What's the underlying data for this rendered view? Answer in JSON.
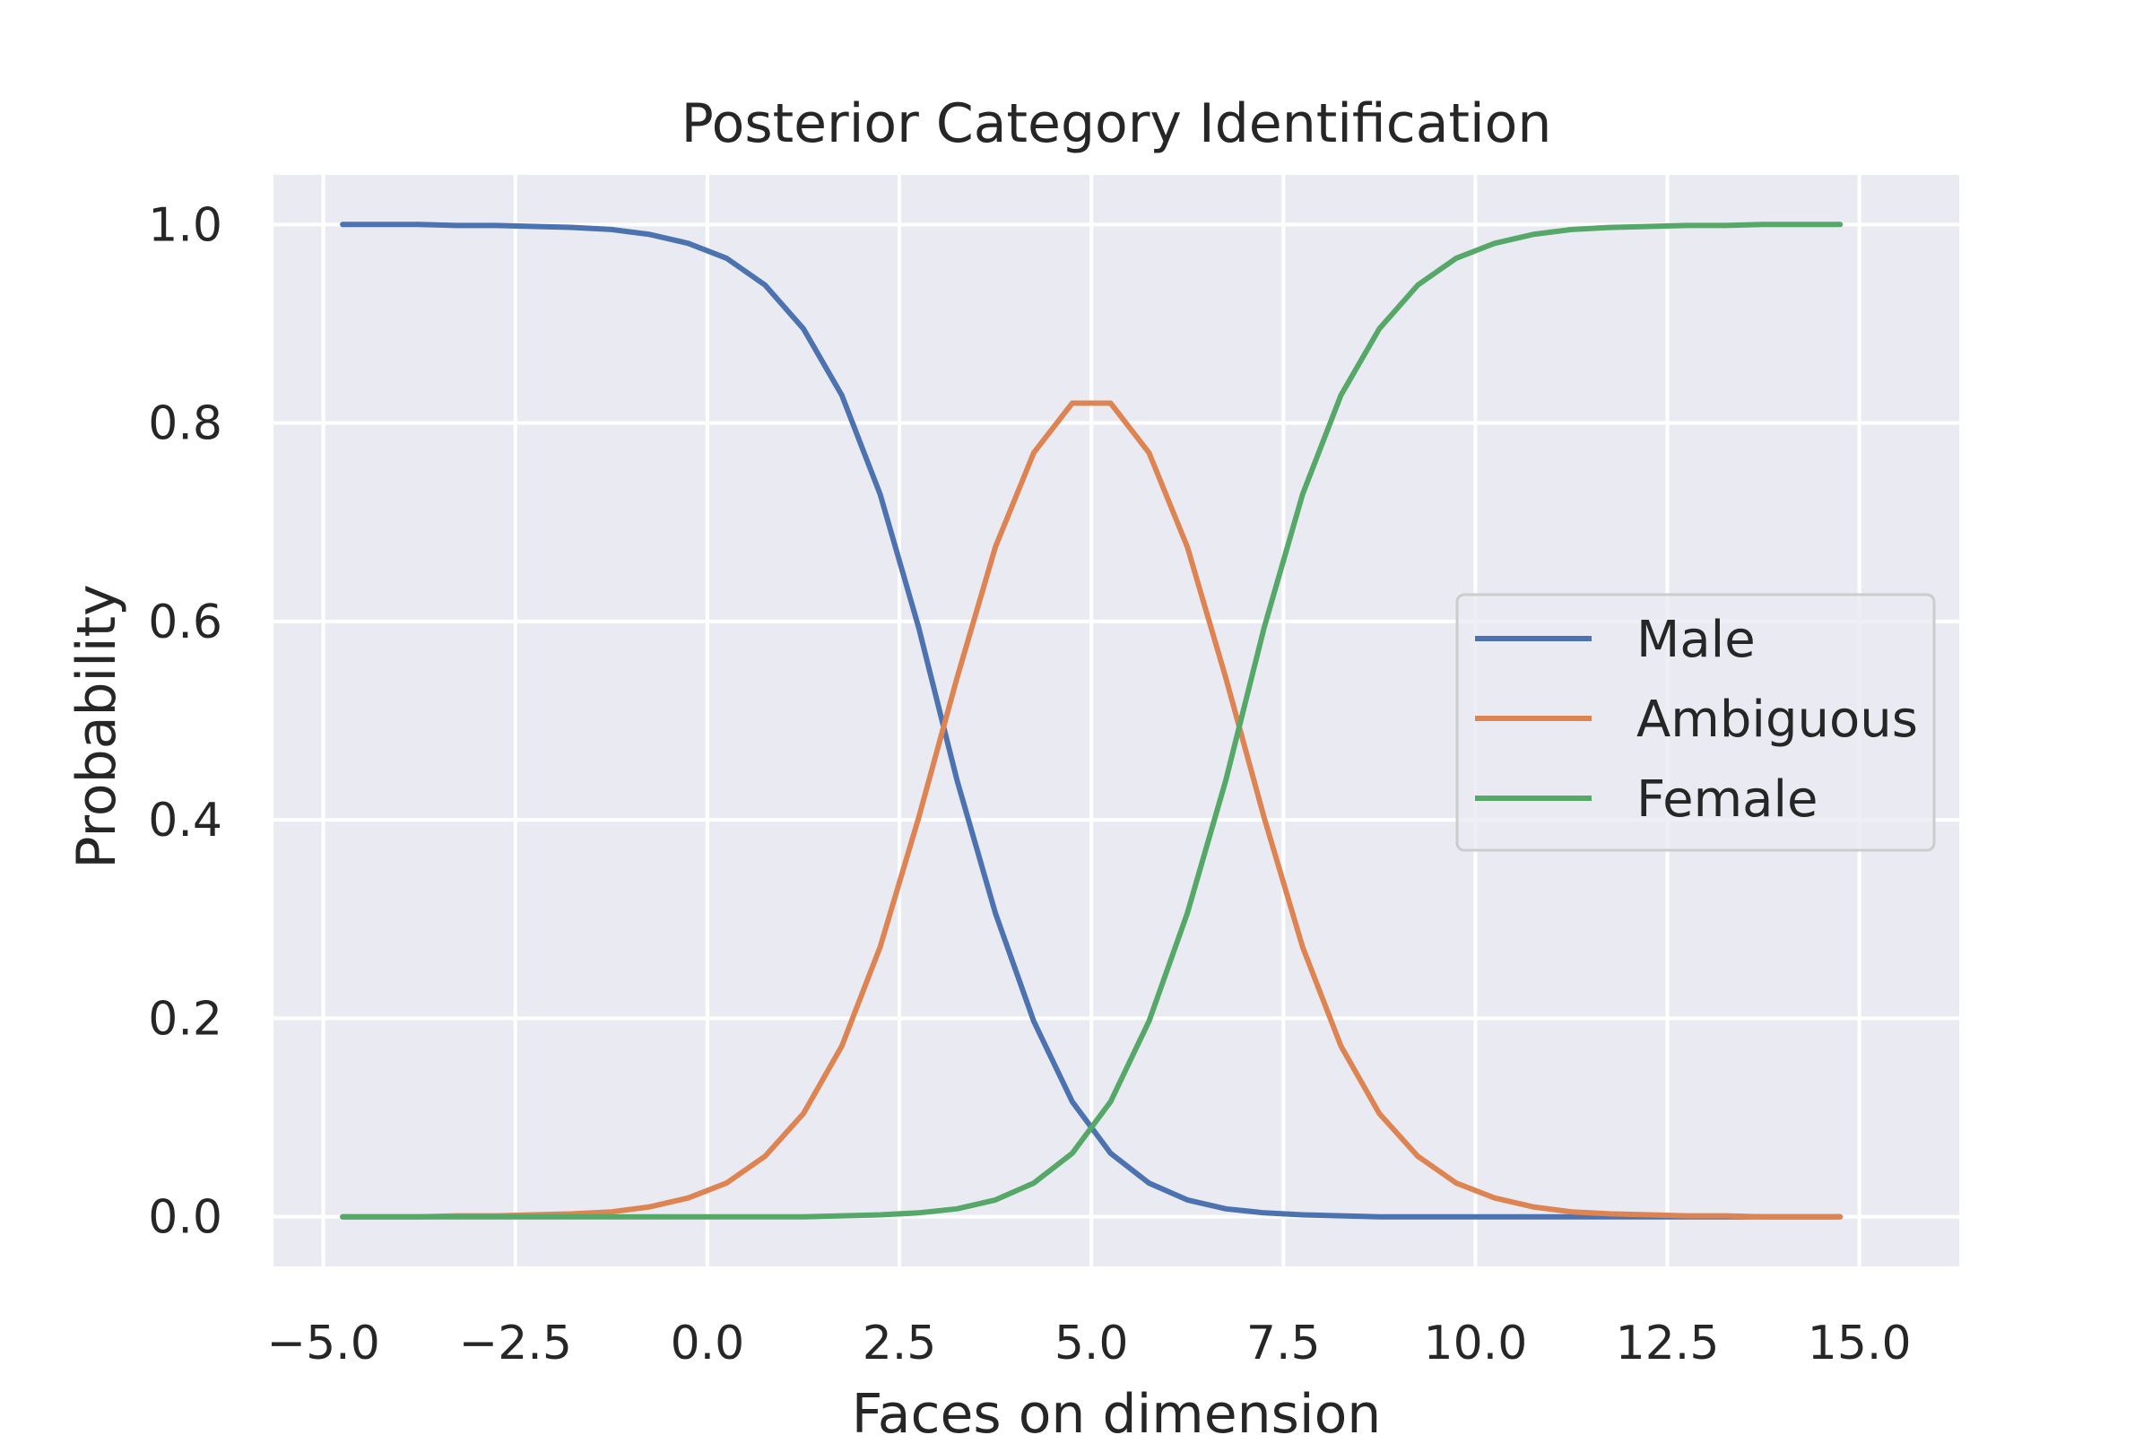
{
  "chart_data": {
    "type": "line",
    "title": "Posterior Category Identification",
    "xlabel": "Faces on dimension",
    "ylabel": "Probability",
    "xlim": [
      -5.65,
      16.3
    ],
    "ylim": [
      -0.05,
      1.05
    ],
    "xticks": [
      -5.0,
      -2.5,
      0.0,
      2.5,
      5.0,
      7.5,
      10.0,
      12.5,
      15.0
    ],
    "xtick_labels": [
      "−5.0",
      "−2.5",
      "0.0",
      "2.5",
      "5.0",
      "7.5",
      "10.0",
      "12.5",
      "15.0"
    ],
    "yticks": [
      0.0,
      0.2,
      0.4,
      0.6,
      0.8,
      1.0
    ],
    "ytick_labels": [
      "0.0",
      "0.2",
      "0.4",
      "0.6",
      "0.8",
      "1.0"
    ],
    "grid": true,
    "legend_position": "center-right",
    "x": [
      -4.75,
      -4.25,
      -3.75,
      -3.25,
      -2.75,
      -2.25,
      -1.75,
      -1.25,
      -0.75,
      -0.25,
      0.25,
      0.75,
      1.25,
      1.75,
      2.25,
      2.75,
      3.25,
      3.75,
      4.25,
      4.75,
      5.25,
      5.75,
      6.25,
      6.75,
      7.25,
      7.75,
      8.25,
      8.75,
      9.25,
      9.75,
      10.25,
      10.75,
      11.25,
      11.75,
      12.25,
      12.75,
      13.25,
      13.75,
      14.25,
      14.75
    ],
    "series": [
      {
        "name": "Male",
        "color": "#4c72b0",
        "values": [
          1.0,
          1.0,
          1.0,
          0.999,
          0.999,
          0.998,
          0.997,
          0.995,
          0.99,
          0.981,
          0.966,
          0.939,
          0.895,
          0.828,
          0.728,
          0.594,
          0.44,
          0.306,
          0.197,
          0.116,
          0.064,
          0.034,
          0.017,
          0.008,
          0.004,
          0.002,
          0.001,
          0.0,
          0.0,
          0.0,
          0.0,
          0.0,
          0.0,
          0.0,
          0.0,
          0.0,
          0.0,
          0.0,
          0.0,
          0.0
        ]
      },
      {
        "name": "Ambiguous",
        "color": "#dd8452",
        "values": [
          0.0,
          0.0,
          0.0,
          0.001,
          0.001,
          0.002,
          0.003,
          0.005,
          0.01,
          0.019,
          0.034,
          0.061,
          0.104,
          0.172,
          0.272,
          0.402,
          0.543,
          0.675,
          0.77,
          0.82,
          0.82,
          0.77,
          0.675,
          0.543,
          0.402,
          0.272,
          0.172,
          0.104,
          0.061,
          0.034,
          0.019,
          0.01,
          0.005,
          0.003,
          0.002,
          0.001,
          0.001,
          0.0,
          0.0,
          0.0
        ]
      },
      {
        "name": "Female",
        "color": "#55a868",
        "values": [
          0.0,
          0.0,
          0.0,
          0.0,
          0.0,
          0.0,
          0.0,
          0.0,
          0.0,
          0.0,
          0.0,
          0.0,
          0.0,
          0.001,
          0.002,
          0.004,
          0.008,
          0.017,
          0.034,
          0.064,
          0.116,
          0.197,
          0.306,
          0.44,
          0.594,
          0.728,
          0.828,
          0.895,
          0.939,
          0.966,
          0.981,
          0.99,
          0.995,
          0.997,
          0.998,
          0.999,
          0.999,
          1.0,
          1.0,
          1.0
        ]
      }
    ],
    "background_color": "#eaeaf2",
    "grid_color": "#ffffff"
  }
}
